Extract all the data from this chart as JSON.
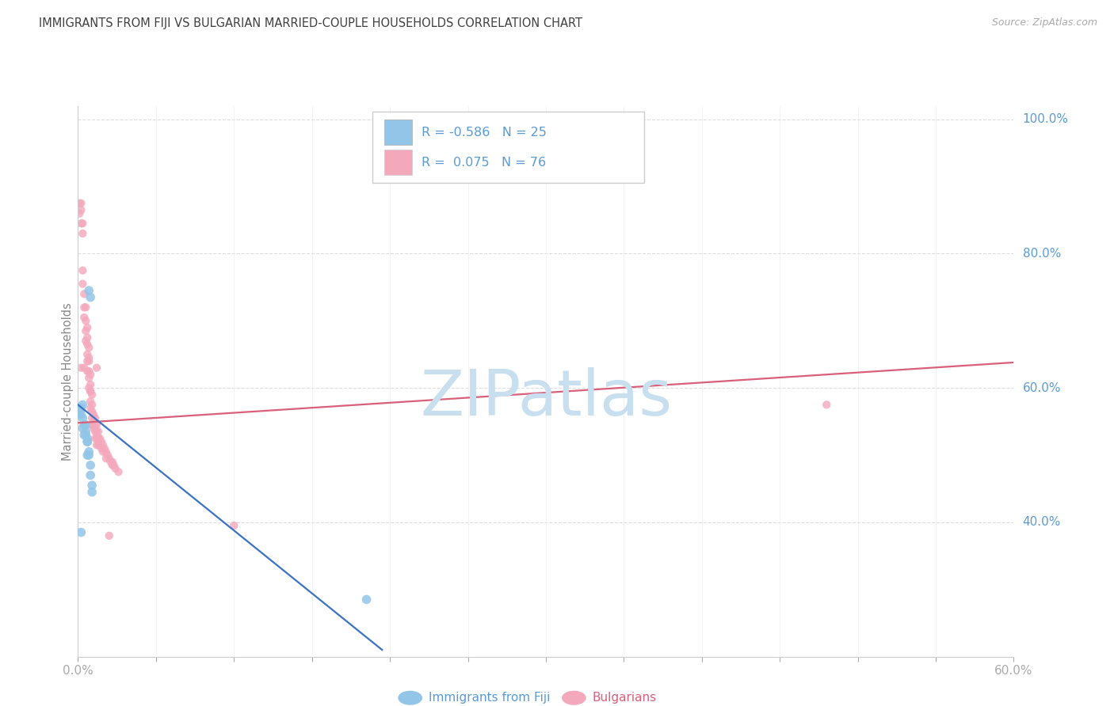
{
  "title": "IMMIGRANTS FROM FIJI VS BULGARIAN MARRIED-COUPLE HOUSEHOLDS CORRELATION CHART",
  "source": "Source: ZipAtlas.com",
  "xlabel_blue": "Immigrants from Fiji",
  "xlabel_pink": "Bulgarians",
  "ylabel": "Married-couple Households",
  "xmin": 0.0,
  "xmax": 0.6,
  "ymin": 0.2,
  "ymax": 1.02,
  "legend_blue_r": "-0.586",
  "legend_blue_n": "25",
  "legend_pink_r": "0.075",
  "legend_pink_n": "76",
  "blue_color": "#92C5E8",
  "pink_color": "#F4A8BC",
  "blue_line_color": "#3A72C4",
  "pink_line_color": "#D9607A",
  "axis_label_color": "#5B9BD5",
  "title_color": "#404040",
  "grid_color": "#DDDDDD",
  "watermark_color": "#C8DFF0",
  "blue_dots_x": [
    0.001,
    0.002,
    0.002,
    0.003,
    0.003,
    0.003,
    0.004,
    0.004,
    0.005,
    0.005,
    0.005,
    0.006,
    0.006,
    0.006,
    0.006,
    0.007,
    0.007,
    0.007,
    0.008,
    0.008,
    0.008,
    0.009,
    0.009,
    0.185,
    0.002
  ],
  "blue_dots_y": [
    0.565,
    0.56,
    0.57,
    0.575,
    0.555,
    0.54,
    0.545,
    0.53,
    0.545,
    0.535,
    0.53,
    0.52,
    0.525,
    0.52,
    0.5,
    0.505,
    0.5,
    0.745,
    0.735,
    0.485,
    0.47,
    0.455,
    0.445,
    0.285,
    0.385
  ],
  "pink_dots_x": [
    0.001,
    0.001,
    0.002,
    0.002,
    0.002,
    0.003,
    0.003,
    0.003,
    0.003,
    0.004,
    0.004,
    0.004,
    0.005,
    0.005,
    0.005,
    0.005,
    0.006,
    0.006,
    0.006,
    0.006,
    0.006,
    0.007,
    0.007,
    0.007,
    0.007,
    0.007,
    0.007,
    0.008,
    0.008,
    0.008,
    0.008,
    0.008,
    0.009,
    0.009,
    0.009,
    0.009,
    0.009,
    0.01,
    0.01,
    0.01,
    0.011,
    0.011,
    0.011,
    0.011,
    0.012,
    0.012,
    0.012,
    0.012,
    0.013,
    0.013,
    0.013,
    0.014,
    0.014,
    0.015,
    0.015,
    0.016,
    0.016,
    0.017,
    0.018,
    0.018,
    0.019,
    0.02,
    0.021,
    0.022,
    0.022,
    0.023,
    0.024,
    0.026,
    0.002,
    0.004,
    0.006,
    0.008,
    0.012,
    0.02,
    0.48,
    0.1
  ],
  "pink_dots_y": [
    0.875,
    0.86,
    0.865,
    0.875,
    0.845,
    0.845,
    0.83,
    0.775,
    0.755,
    0.74,
    0.72,
    0.705,
    0.72,
    0.7,
    0.685,
    0.67,
    0.69,
    0.675,
    0.665,
    0.65,
    0.64,
    0.66,
    0.645,
    0.64,
    0.625,
    0.615,
    0.6,
    0.62,
    0.605,
    0.595,
    0.58,
    0.57,
    0.59,
    0.575,
    0.565,
    0.555,
    0.545,
    0.56,
    0.55,
    0.54,
    0.555,
    0.545,
    0.535,
    0.525,
    0.545,
    0.535,
    0.525,
    0.515,
    0.535,
    0.525,
    0.515,
    0.525,
    0.515,
    0.52,
    0.51,
    0.515,
    0.505,
    0.51,
    0.505,
    0.495,
    0.5,
    0.495,
    0.49,
    0.485,
    0.49,
    0.485,
    0.48,
    0.475,
    0.63,
    0.63,
    0.625,
    0.595,
    0.63,
    0.38,
    0.575,
    0.395
  ],
  "blue_trendline_x": [
    0.0,
    0.195
  ],
  "blue_trendline_y": [
    0.575,
    0.21
  ],
  "pink_trendline_x": [
    0.0,
    0.6
  ],
  "pink_trendline_y": [
    0.548,
    0.638
  ],
  "blue_dot_size": 70,
  "pink_dot_size": 55,
  "ytick_positions": [
    0.4,
    0.6,
    0.8,
    1.0
  ],
  "ytick_labels": [
    "40.0%",
    "60.0%",
    "80.0%",
    "100.0%"
  ],
  "xtick_show": [
    "0.0%",
    "60.0%"
  ]
}
